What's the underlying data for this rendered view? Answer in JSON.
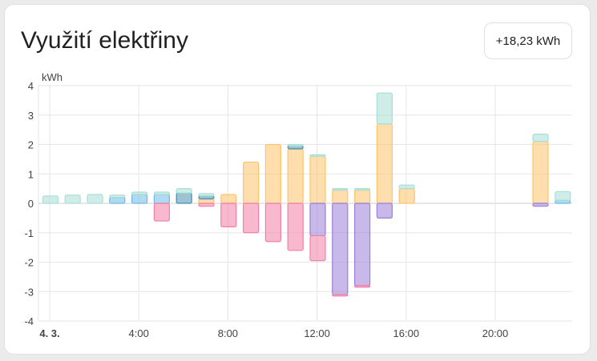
{
  "card": {
    "title": "Využití elektřiny",
    "total_badge": "+18,23 kWh"
  },
  "chart_data": {
    "type": "bar",
    "stacked": true,
    "ylabel": "kWh",
    "ylim": [
      -4,
      4
    ],
    "yticks": [
      "4",
      "3",
      "2",
      "1",
      "0",
      "-1",
      "-2",
      "-3",
      "-4"
    ],
    "xticks": [
      {
        "hour": 0,
        "label": "4. 3.",
        "bold": true
      },
      {
        "hour": 4,
        "label": "4:00"
      },
      {
        "hour": 8,
        "label": "8:00"
      },
      {
        "hour": 12,
        "label": "12:00"
      },
      {
        "hour": 16,
        "label": "16:00"
      },
      {
        "hour": 20,
        "label": "20:00"
      }
    ],
    "hours": [
      0,
      1,
      2,
      3,
      4,
      5,
      6,
      7,
      8,
      9,
      10,
      11,
      12,
      13,
      14,
      15,
      16,
      17,
      18,
      19,
      20,
      21,
      22,
      23
    ],
    "colors": {
      "battery_charge": "#9b7fd9",
      "grid_export": "#f27fa6",
      "solar": "#ffc36b",
      "grid_import": "#6fb9e8",
      "battery_discharge": "#4a8fb0",
      "consumption_other": "#a8dfd5"
    },
    "series": [
      {
        "key": "grid_import",
        "values": [
          0,
          0,
          0,
          0.2,
          0.3,
          0.3,
          0,
          0,
          0,
          0,
          0,
          0,
          0,
          0,
          0,
          0,
          0,
          0,
          0,
          0,
          0,
          0,
          0,
          0.1
        ]
      },
      {
        "key": "battery_discharge",
        "values": [
          0,
          0,
          0,
          0,
          0,
          0,
          0.35,
          0,
          0,
          0,
          0,
          0,
          0,
          0,
          0,
          0,
          0,
          0,
          0,
          0,
          0,
          0,
          0,
          0
        ]
      },
      {
        "key": "solar",
        "values": [
          0,
          0,
          0,
          0,
          0,
          0,
          0,
          0.15,
          0.3,
          1.4,
          2.0,
          1.85,
          1.6,
          0.45,
          0.45,
          2.7,
          0.5,
          0,
          0,
          0,
          0,
          0,
          2.1,
          0
        ]
      },
      {
        "key": "battery_discharge_top",
        "values": [
          0,
          0,
          0,
          0,
          0,
          0,
          0,
          0.1,
          0,
          0,
          0,
          0.1,
          0,
          0,
          0,
          0,
          0,
          0,
          0,
          0,
          0,
          0,
          0,
          0
        ]
      },
      {
        "key": "consumption_other",
        "values": [
          0.25,
          0.28,
          0.3,
          0.08,
          0.08,
          0.08,
          0.15,
          0.08,
          0,
          0,
          0,
          0.05,
          0.05,
          0.05,
          0.05,
          1.05,
          0.12,
          0,
          0,
          0,
          0,
          0,
          0.25,
          0.3
        ]
      },
      {
        "key": "battery_charge",
        "values": [
          0,
          0,
          0,
          0,
          0,
          0,
          0,
          0,
          0,
          0,
          0,
          0,
          -1.1,
          -3.1,
          -2.8,
          -0.5,
          0,
          0,
          0,
          0,
          0,
          0,
          -0.1,
          0
        ]
      },
      {
        "key": "grid_export",
        "values": [
          0,
          0,
          0,
          0,
          0,
          -0.6,
          0,
          -0.1,
          -0.8,
          -1.0,
          -1.3,
          -1.6,
          -0.85,
          -0.05,
          -0.05,
          0,
          0,
          0,
          0,
          0,
          0,
          0,
          0,
          0
        ]
      }
    ]
  }
}
